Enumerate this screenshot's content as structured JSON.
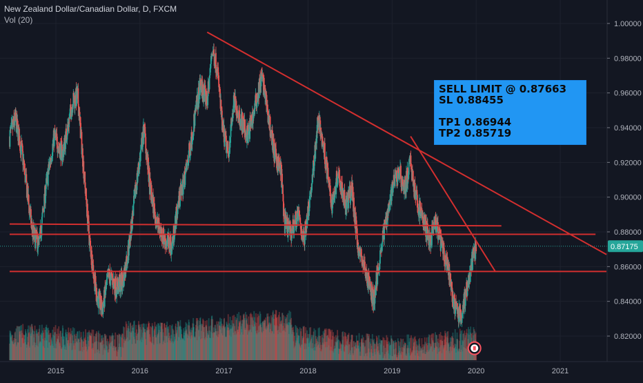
{
  "header": {
    "title": "New Zealand Dollar/Canadian Dollar, D, FXCM",
    "volume_label": "Vol (20)"
  },
  "annotation": {
    "line1": "SELL LIMIT @ 0.87663",
    "line2": "SL 0.88455",
    "line3": "TP1 0.86944",
    "line4": "TP2 0.85719"
  },
  "price_badge": {
    "value": "0.87175",
    "color": "#26a69a"
  },
  "colors": {
    "background": "#131722",
    "up": "#26a69a",
    "down": "#ef5350",
    "line": "#d32f2f",
    "annotation_bg": "#2196f3"
  },
  "chart_data": {
    "type": "candlestick",
    "x_ticks": [
      "2015",
      "2016",
      "2017",
      "2018",
      "2019",
      "2020",
      "2021"
    ],
    "y_ticks": [
      "0.82000",
      "0.84000",
      "0.86000",
      "0.88000",
      "0.90000",
      "0.92000",
      "0.94000",
      "0.96000",
      "0.98000",
      "1.00000"
    ],
    "ylim": [
      0.808,
      1.007
    ],
    "xlim": [
      2014.45,
      2021.55
    ],
    "close_path": [
      [
        2014.45,
        0.935
      ],
      [
        2014.52,
        0.945
      ],
      [
        2014.6,
        0.925
      ],
      [
        2014.72,
        0.88
      ],
      [
        2014.8,
        0.872
      ],
      [
        2014.88,
        0.905
      ],
      [
        2014.98,
        0.935
      ],
      [
        2015.08,
        0.925
      ],
      [
        2015.2,
        0.955
      ],
      [
        2015.26,
        0.958
      ],
      [
        2015.35,
        0.905
      ],
      [
        2015.4,
        0.875
      ],
      [
        2015.48,
        0.845
      ],
      [
        2015.55,
        0.835
      ],
      [
        2015.63,
        0.855
      ],
      [
        2015.72,
        0.848
      ],
      [
        2015.8,
        0.852
      ],
      [
        2015.88,
        0.875
      ],
      [
        2015.95,
        0.905
      ],
      [
        2016.05,
        0.94
      ],
      [
        2016.12,
        0.905
      ],
      [
        2016.2,
        0.885
      ],
      [
        2016.3,
        0.875
      ],
      [
        2016.38,
        0.872
      ],
      [
        2016.45,
        0.895
      ],
      [
        2016.55,
        0.915
      ],
      [
        2016.65,
        0.945
      ],
      [
        2016.72,
        0.965
      ],
      [
        2016.8,
        0.955
      ],
      [
        2016.86,
        0.985
      ],
      [
        2016.92,
        0.975
      ],
      [
        2016.98,
        0.94
      ],
      [
        2017.05,
        0.925
      ],
      [
        2017.12,
        0.955
      ],
      [
        2017.2,
        0.945
      ],
      [
        2017.28,
        0.935
      ],
      [
        2017.36,
        0.95
      ],
      [
        2017.45,
        0.97
      ],
      [
        2017.5,
        0.955
      ],
      [
        2017.6,
        0.925
      ],
      [
        2017.68,
        0.915
      ],
      [
        2017.72,
        0.885
      ],
      [
        2017.8,
        0.88
      ],
      [
        2017.88,
        0.89
      ],
      [
        2017.95,
        0.875
      ],
      [
        2018.05,
        0.91
      ],
      [
        2018.12,
        0.945
      ],
      [
        2018.2,
        0.925
      ],
      [
        2018.28,
        0.895
      ],
      [
        2018.36,
        0.915
      ],
      [
        2018.45,
        0.895
      ],
      [
        2018.52,
        0.905
      ],
      [
        2018.6,
        0.87
      ],
      [
        2018.7,
        0.855
      ],
      [
        2018.78,
        0.84
      ],
      [
        2018.85,
        0.865
      ],
      [
        2018.92,
        0.885
      ],
      [
        2019.0,
        0.905
      ],
      [
        2019.08,
        0.915
      ],
      [
        2019.15,
        0.905
      ],
      [
        2019.22,
        0.92
      ],
      [
        2019.28,
        0.9
      ],
      [
        2019.35,
        0.89
      ],
      [
        2019.45,
        0.875
      ],
      [
        2019.52,
        0.885
      ],
      [
        2019.6,
        0.87
      ],
      [
        2019.68,
        0.855
      ],
      [
        2019.75,
        0.835
      ],
      [
        2019.82,
        0.832
      ],
      [
        2019.88,
        0.845
      ],
      [
        2019.95,
        0.862
      ],
      [
        2020.0,
        0.872
      ]
    ],
    "lines": [
      {
        "from": [
          2016.8,
          0.995
        ],
        "to": [
          2021.55,
          0.867
        ]
      },
      {
        "from": [
          2019.22,
          0.935
        ],
        "to": [
          2020.23,
          0.857
        ]
      },
      {
        "from": [
          2014.45,
          0.8845
        ],
        "to": [
          2020.3,
          0.8835
        ]
      },
      {
        "from": [
          2014.45,
          0.8786
        ],
        "to": [
          2021.42,
          0.8786
        ]
      },
      {
        "from": [
          2014.45,
          0.8572
        ],
        "to": [
          2021.55,
          0.8572
        ]
      }
    ],
    "marker": {
      "x": 2019.98,
      "y": 0.813
    }
  }
}
